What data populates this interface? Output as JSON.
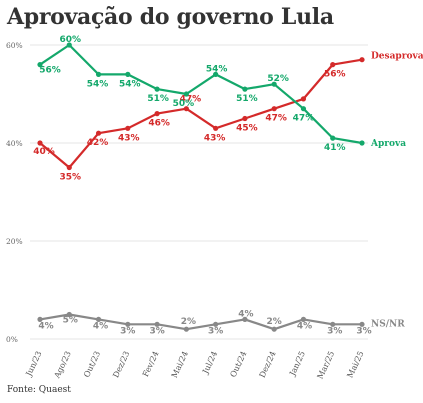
{
  "chart_data": {
    "type": "line",
    "title": "Aprovação do governo Lula",
    "source": "Fonte: Quaest",
    "categories": [
      "Jun/23",
      "Ago/23",
      "Out/23",
      "Dez/23",
      "Fev/24",
      "Mai/24",
      "Jul/24",
      "Out/24",
      "Dez/24",
      "Jan/25",
      "Mar/25",
      "Mai/25"
    ],
    "ylim": [
      0,
      60
    ],
    "yticks": [
      0,
      20,
      40,
      60
    ],
    "ytick_labels": [
      "0%",
      "20%",
      "40%",
      "60%"
    ],
    "grid": true,
    "series": [
      {
        "name": "Desaprova",
        "color": "#d42a2a",
        "values": [
          40,
          35,
          42,
          43,
          46,
          47,
          43,
          45,
          47,
          49,
          56,
          57
        ],
        "labels": [
          "40%",
          "35%",
          "42%",
          "43%",
          "46%",
          "47%",
          "43%",
          "45%",
          "47%",
          "",
          "56%",
          ""
        ]
      },
      {
        "name": "Aprova",
        "color": "#14a86b",
        "values": [
          56,
          60,
          54,
          54,
          51,
          50,
          54,
          51,
          52,
          47,
          41,
          40
        ],
        "labels": [
          "56%",
          "60%",
          "54%",
          "54%",
          "51%",
          "50%",
          "54%",
          "51%",
          "52%",
          "47%",
          "41%",
          ""
        ]
      },
      {
        "name": "NS/NR",
        "color": "#888888",
        "values": [
          4,
          5,
          4,
          3,
          3,
          2,
          3,
          4,
          2,
          4,
          3,
          3
        ],
        "labels": [
          "4%",
          "5%",
          "4%",
          "3%",
          "3%",
          "2%",
          "3%",
          "4%",
          "2%",
          "4%",
          "3%",
          "3%"
        ]
      }
    ]
  }
}
